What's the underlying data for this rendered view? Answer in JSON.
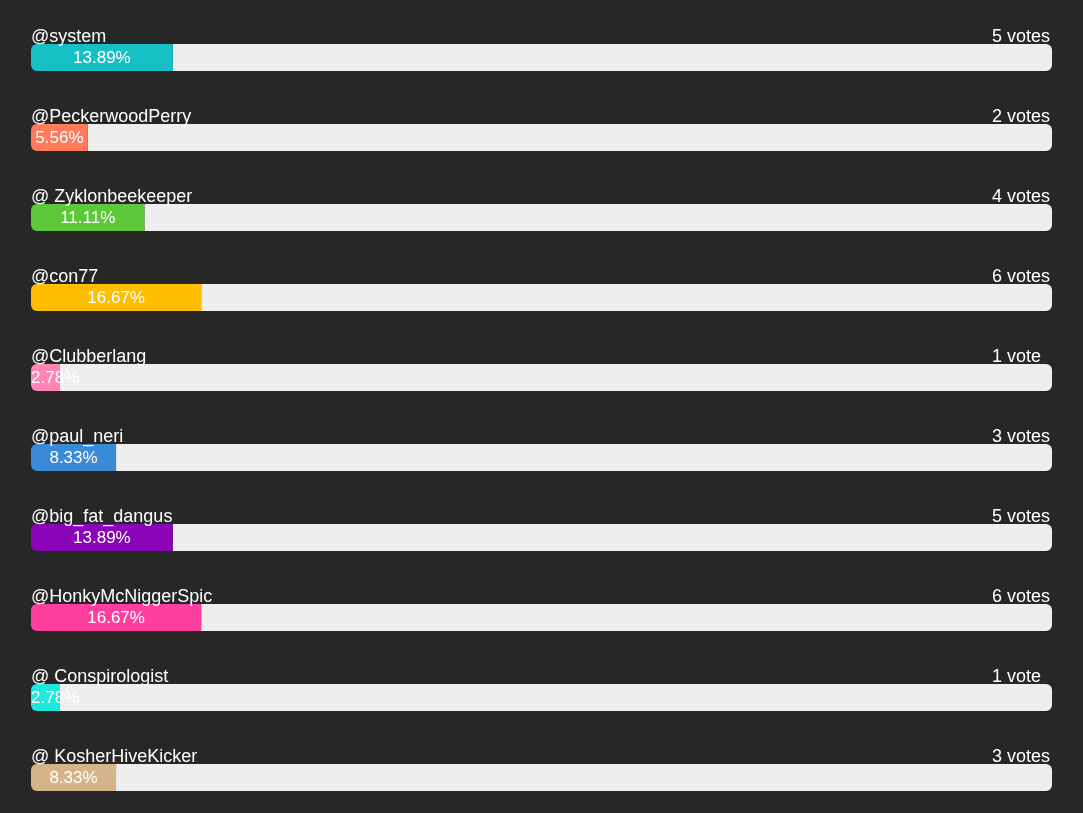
{
  "chart_data": {
    "type": "bar",
    "orientation": "horizontal",
    "stacked": true,
    "tick_labels": "y",
    "categories": [
      "@system",
      "@PeckerwoodPerry",
      "@ Zyklonbeekeeper",
      "@con77",
      "@Clubberlang",
      "@paul_neri",
      "@big_fat_dangus",
      "@HonkyMcNiggerSpic",
      "@ Conspirologist",
      "@ KosherHiveKicker"
    ],
    "series": [
      {
        "colors": [
          "#17c0c4",
          "#ff7b5c",
          "#5cc83a",
          "#ffbf00",
          "#ff85b5",
          "#3a8ad8",
          "#8a05b8",
          "#ff3fa0",
          "#20e8dc",
          "#d6b48a"
        ],
        "values": [
          13.89,
          5.56,
          11.11,
          16.67,
          2.78,
          8.33,
          13.89,
          16.67,
          2.78,
          8.33
        ],
        "value_labels": [
          "13.89%",
          "5.56%",
          "11.11%",
          "16.67%",
          "2.78%",
          "8.33%",
          "13.89%",
          "16.67%",
          "2.78%",
          "8.33%"
        ]
      },
      {
        "color": "#eeeeee",
        "values": [
          86.11,
          94.44,
          88.89,
          83.33,
          97.22,
          91.67,
          86.11,
          83.33,
          97.22,
          91.67
        ]
      }
    ],
    "xlim": [
      0,
      100
    ],
    "annotations": [
      "5 votes",
      "2 votes",
      "4 votes",
      "6 votes",
      "1 vote",
      "3 votes",
      "5 votes",
      "6 votes",
      "1 vote",
      "3 votes"
    ]
  }
}
